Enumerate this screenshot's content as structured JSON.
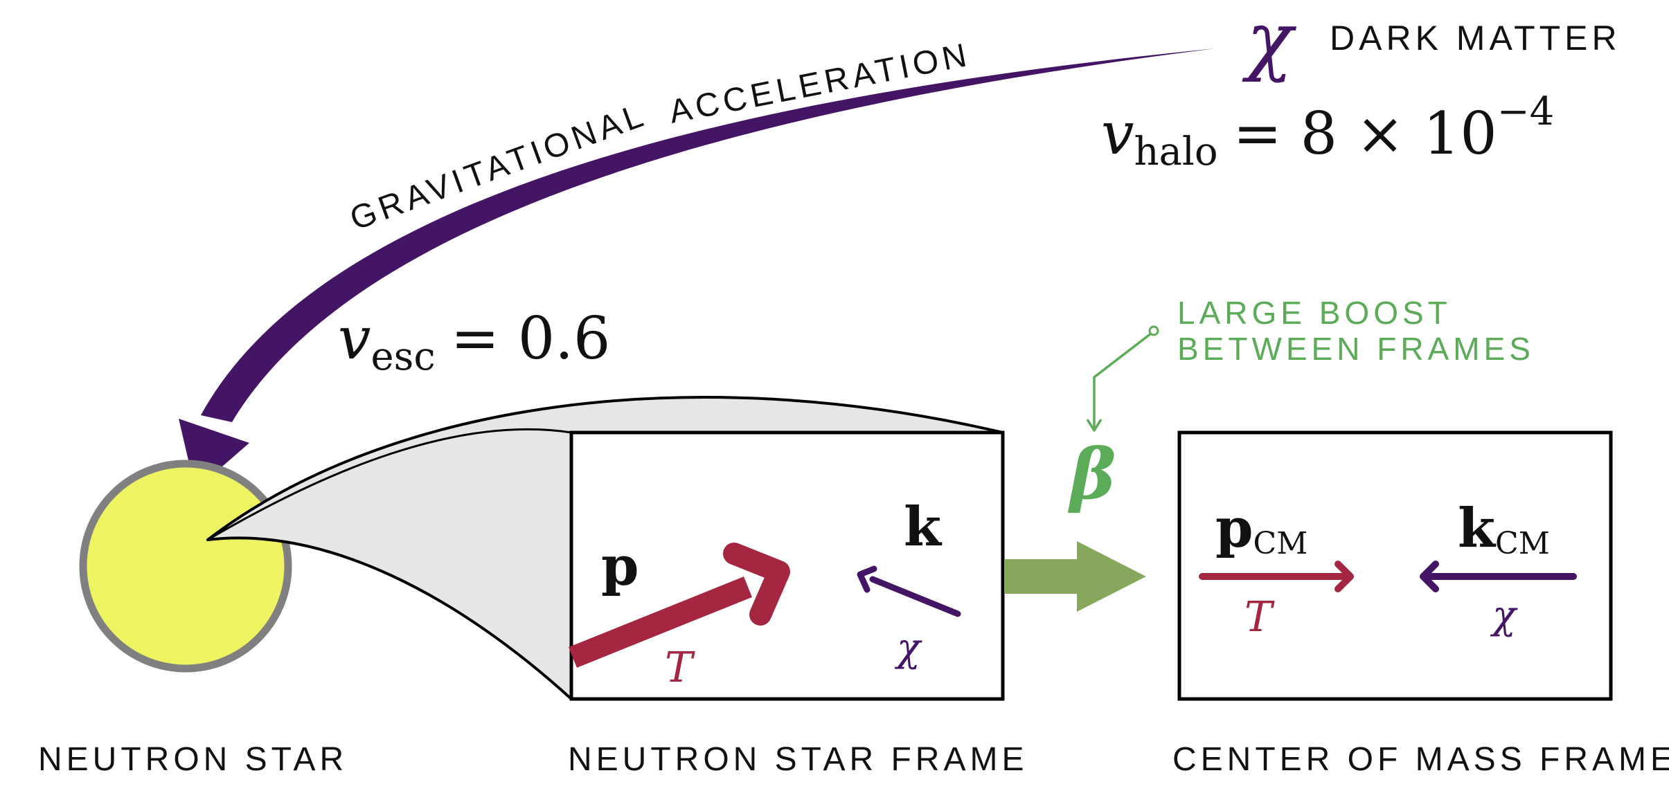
{
  "colors": {
    "dark_purple": "#441565",
    "crimson": "#a52640",
    "green_text": "#5bab58",
    "green_arrow": "#87a85c",
    "star_fill": "#eef361",
    "star_ring": "#808080",
    "frame_fill": "#e6e6e6"
  },
  "top": {
    "chi_symbol": "χ",
    "dark_matter_label": "DARK MATTER",
    "v_halo_var": "v",
    "v_halo_sub": "halo",
    "v_halo_rhs": "= 8 × 10",
    "v_halo_exp": "−4"
  },
  "gravity": {
    "label_part1": "GRAVITATIONAL",
    "label_part2": "ACCELERATION",
    "v_esc_var": "v",
    "v_esc_sub": "esc",
    "v_esc_rhs": "= 0.6"
  },
  "boost": {
    "label_line1": "LARGE BOOST",
    "label_line2": "BETWEEN FRAMES",
    "beta_symbol": "β"
  },
  "ns_frame": {
    "p_label": "p",
    "T_label": "T",
    "k_label": "k",
    "chi_label": "χ"
  },
  "cm_frame": {
    "p_label": "p",
    "p_sub": "CM",
    "T_label": "T",
    "k_label": "k",
    "k_sub": "CM",
    "chi_label": "χ"
  },
  "captions": {
    "neutron_star": "NEUTRON STAR",
    "ns_frame": "NEUTRON STAR FRAME",
    "cm_frame": "CENTER OF MASS FRAME"
  }
}
